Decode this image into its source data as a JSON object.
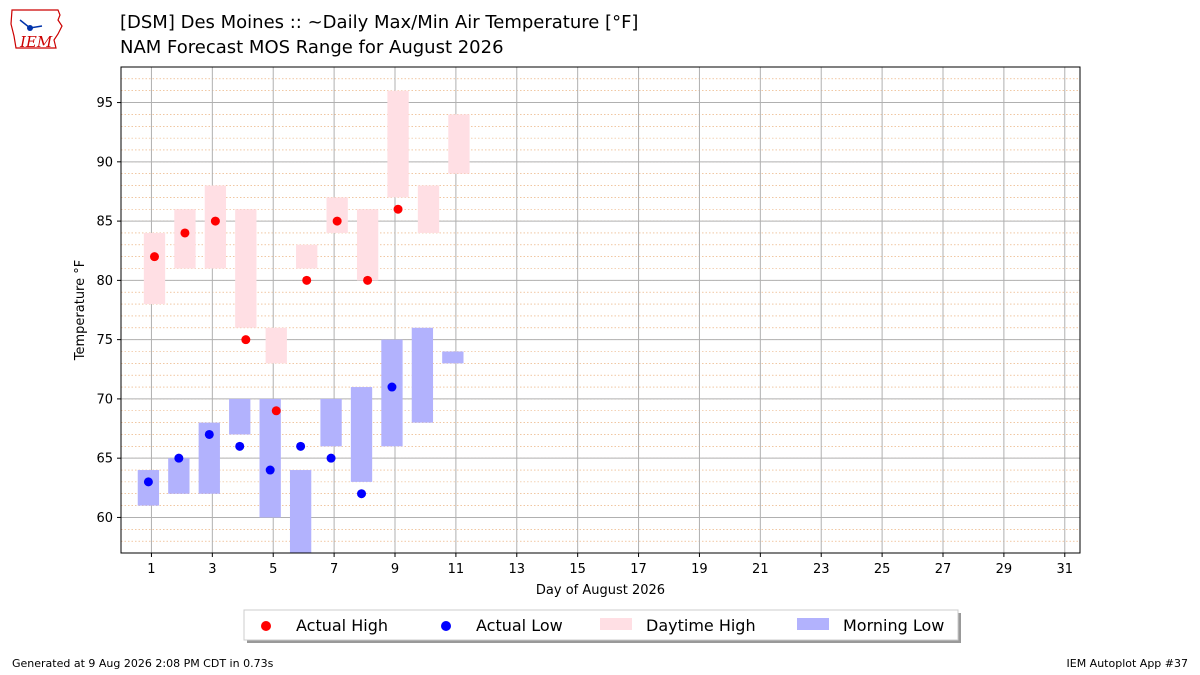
{
  "header": {
    "title": "[DSM] Des Moines :: ~Daily Max/Min Air Temperature [°F]",
    "subtitle": "NAM Forecast MOS Range for August 2026",
    "logo_text": "IEM"
  },
  "footer": {
    "left": "Generated at 9 Aug 2026 2:08 PM CDT in 0.73s",
    "right": "IEM Autoplot App #37"
  },
  "colors": {
    "actual_high": "#ff0000",
    "actual_low": "#0000ff",
    "daytime_high": "#ffdfe4",
    "morning_low": "#b2b2fd",
    "logo": "#cc0000"
  },
  "chart_data": {
    "type": "scatter",
    "xlabel": "Day of August 2026",
    "ylabel": "Temperature °F",
    "xlim": [
      0,
      31.5
    ],
    "ylim": [
      57,
      98
    ],
    "xticks": [
      1,
      3,
      5,
      7,
      9,
      11,
      13,
      15,
      17,
      19,
      21,
      23,
      25,
      27,
      29,
      31
    ],
    "yticks": [
      60,
      65,
      70,
      75,
      80,
      85,
      90,
      95
    ],
    "grid": true,
    "legend_position": "bottom-center",
    "series": [
      {
        "name": "Actual High",
        "kind": "points",
        "points": [
          [
            1,
            82
          ],
          [
            2,
            84
          ],
          [
            3,
            85
          ],
          [
            4,
            75
          ],
          [
            5,
            69
          ],
          [
            6,
            80
          ],
          [
            7,
            85
          ],
          [
            8,
            80
          ],
          [
            9,
            86
          ]
        ]
      },
      {
        "name": "Actual Low",
        "kind": "points",
        "points": [
          [
            1,
            63
          ],
          [
            2,
            65
          ],
          [
            3,
            67
          ],
          [
            4,
            66
          ],
          [
            5,
            64
          ],
          [
            6,
            66
          ],
          [
            7,
            65
          ],
          [
            8,
            62
          ],
          [
            9,
            71
          ]
        ]
      },
      {
        "name": "Daytime High",
        "kind": "range",
        "ranges": [
          [
            1,
            78,
            84
          ],
          [
            2,
            81,
            86
          ],
          [
            3,
            81,
            88
          ],
          [
            4,
            76,
            86
          ],
          [
            5,
            73,
            76
          ],
          [
            6,
            81,
            83
          ],
          [
            7,
            84,
            87
          ],
          [
            8,
            80,
            86
          ],
          [
            9,
            87,
            96
          ],
          [
            10,
            84,
            88
          ],
          [
            11,
            89,
            94
          ]
        ]
      },
      {
        "name": "Morning Low",
        "kind": "range",
        "ranges": [
          [
            1,
            61,
            64
          ],
          [
            2,
            62,
            65
          ],
          [
            3,
            62,
            68
          ],
          [
            4,
            67,
            70
          ],
          [
            5,
            60,
            70
          ],
          [
            6,
            57,
            64
          ],
          [
            7,
            66,
            70
          ],
          [
            8,
            63,
            71
          ],
          [
            9,
            66,
            75
          ],
          [
            10,
            68,
            76
          ],
          [
            11,
            73,
            74
          ]
        ]
      }
    ]
  }
}
